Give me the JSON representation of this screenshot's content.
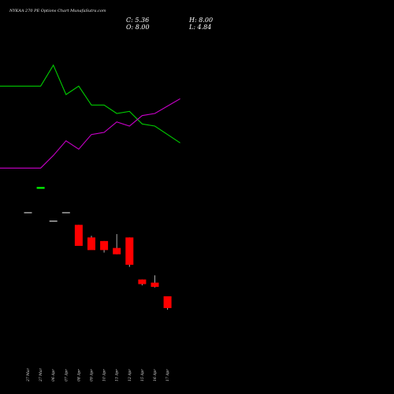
{
  "title": "NYKAA 270 PE Options Chart MunafaSutra.com",
  "ohlc": {
    "close_label": "C: 5.36",
    "high_label": "H: 8.00",
    "open_label": "O: 8.00",
    "low_label": "L: 4.84"
  },
  "colors": {
    "background": "#000000",
    "up": "#00ff00",
    "down": "#ff0000",
    "line_green": "#00cc00",
    "line_magenta": "#cc00cc",
    "wick": "#aaaaaa"
  },
  "chart_data": {
    "type": "candlestick",
    "categories": [
      "27 Mar",
      "27 Mar",
      "06 Apr",
      "07 Apr",
      "08 Apr",
      "09 Apr",
      "10 Apr",
      "11 Apr",
      "12 Apr",
      "15 Apr",
      "16 Apr",
      "17 Apr"
    ],
    "series": [
      {
        "type": "candle",
        "open": [
          14.0,
          26.0,
          10.0,
          14.0,
          8.0,
          2.0,
          0.3,
          -3.0,
          2.0,
          -18.0,
          -19.5,
          -26.0
        ],
        "high": [
          14.0,
          26.0,
          10.0,
          14.0,
          8.0,
          2.8,
          0.3,
          3.6,
          2.0,
          -18.0,
          -16.0,
          -26.0
        ],
        "low": [
          14.0,
          26.0,
          10.0,
          14.0,
          -2.0,
          -3.0,
          -5.2,
          -6.0,
          -12.0,
          -20.8,
          -21.8,
          -32.4
        ],
        "close": [
          14.0,
          26.0,
          10.0,
          14.0,
          -2.0,
          -4.0,
          -4.0,
          -6.0,
          -11.0,
          -20.2,
          -21.5,
          -31.6
        ]
      },
      {
        "type": "line",
        "color": "green",
        "values": [
          74,
          74,
          84,
          70,
          74,
          65,
          65,
          61,
          62,
          56,
          55,
          47
        ]
      },
      {
        "type": "line",
        "color": "magenta",
        "values": [
          35,
          35,
          41,
          48,
          44,
          51,
          52,
          57,
          55,
          60,
          61,
          68
        ]
      }
    ],
    "ylim": [
      -50,
      100
    ],
    "grid": false,
    "legend": "none"
  }
}
